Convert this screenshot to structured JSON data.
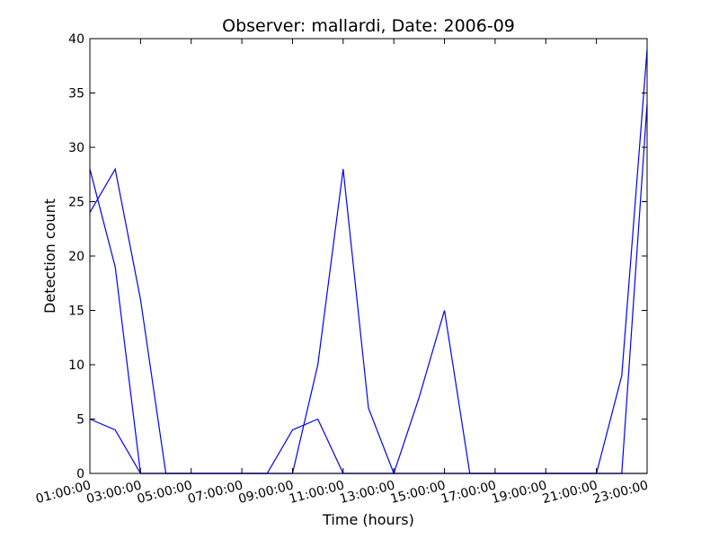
{
  "chart_data": {
    "type": "line",
    "title": "Observer: mallardi, Date: 2006-09",
    "xlabel": "Time (hours)",
    "ylabel": "Detection count",
    "xlim": [
      "01:00:00",
      "23:00:00"
    ],
    "ylim": [
      0,
      40
    ],
    "x_tick_labels": [
      "01:00:00",
      "03:00:00",
      "05:00:00",
      "07:00:00",
      "09:00:00",
      "11:00:00",
      "13:00:00",
      "15:00:00",
      "17:00:00",
      "19:00:00",
      "21:00:00",
      "23:00:00"
    ],
    "y_tick_labels": [
      "0",
      "5",
      "10",
      "15",
      "20",
      "25",
      "30",
      "35",
      "40"
    ],
    "line_color": "#0000ff",
    "grid": false,
    "series": [
      {
        "x": [
          "01:00:00",
          "02:00:00",
          "03:00:00",
          "04:00:00",
          "05:00:00",
          "06:00:00",
          "07:00:00",
          "08:00:00",
          "09:00:00",
          "10:00:00",
          "11:00:00",
          "12:00:00",
          "13:00:00",
          "14:00:00",
          "15:00:00",
          "16:00:00",
          "17:00:00",
          "18:00:00",
          "19:00:00",
          "20:00:00",
          "21:00:00",
          "22:00:00",
          "23:00:00"
        ],
        "values": [
          24,
          28,
          16,
          0,
          0,
          0,
          0,
          0,
          0,
          10,
          28,
          6,
          0,
          7,
          15,
          0,
          0,
          0,
          0,
          0,
          0,
          9,
          39
        ]
      },
      {
        "x": [
          "01:00:00",
          "02:00:00",
          "03:00:00",
          "04:00:00",
          "05:00:00",
          "06:00:00",
          "07:00:00",
          "08:00:00",
          "09:00:00",
          "10:00:00",
          "11:00:00",
          "12:00:00",
          "13:00:00",
          "14:00:00",
          "15:00:00",
          "16:00:00",
          "17:00:00",
          "18:00:00",
          "19:00:00",
          "20:00:00",
          "21:00:00",
          "22:00:00",
          "23:00:00"
        ],
        "values": [
          28,
          19,
          0,
          0,
          0,
          0,
          0,
          0,
          0,
          0,
          0,
          0,
          0,
          0,
          0,
          0,
          0,
          0,
          0,
          0,
          0,
          0,
          34
        ]
      },
      {
        "x": [
          "01:00:00",
          "02:00:00",
          "03:00:00",
          "04:00:00",
          "05:00:00",
          "06:00:00",
          "07:00:00",
          "08:00:00",
          "09:00:00",
          "10:00:00",
          "11:00:00",
          "12:00:00",
          "13:00:00",
          "14:00:00",
          "15:00:00",
          "16:00:00",
          "17:00:00",
          "18:00:00",
          "19:00:00",
          "20:00:00",
          "21:00:00",
          "22:00:00",
          "23:00:00"
        ],
        "values": [
          5,
          4,
          0,
          0,
          0,
          0,
          0,
          0,
          4,
          5,
          0,
          0,
          0,
          0,
          0,
          0,
          0,
          0,
          0,
          0,
          0,
          0,
          0
        ]
      }
    ]
  }
}
